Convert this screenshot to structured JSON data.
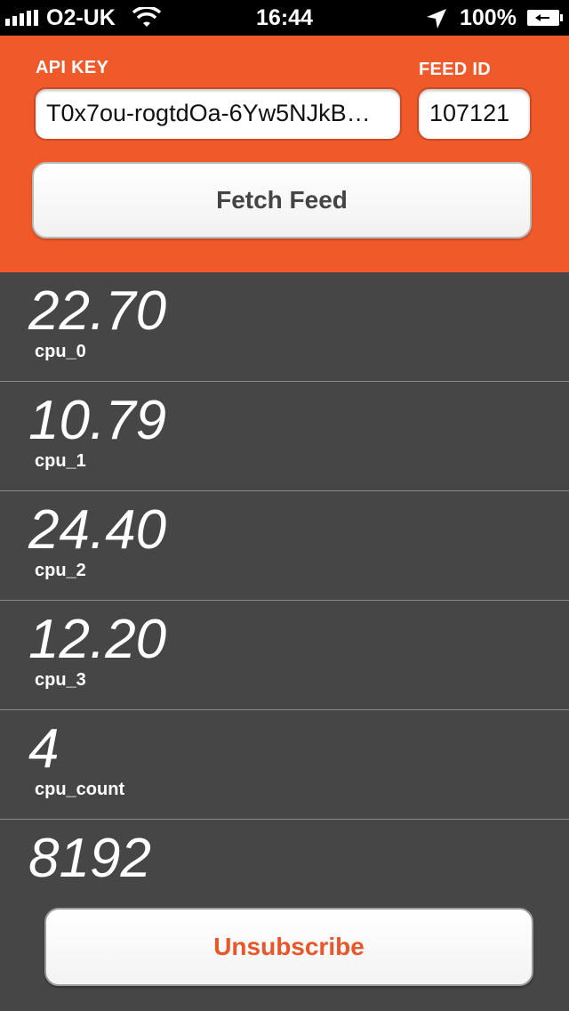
{
  "status_bar": {
    "carrier": "O2-UK",
    "time": "16:44",
    "battery_percent": "100%"
  },
  "header": {
    "api_key_label": "API KEY",
    "feed_id_label": "FEED ID",
    "api_key_value": "T0x7ou-rogtdOa-6Yw5NJkB…",
    "feed_id_value": "107121",
    "fetch_button_label": "Fetch Feed",
    "accent_color": "#f05a2a"
  },
  "datastreams": [
    {
      "value": "22.70",
      "name": "cpu_0"
    },
    {
      "value": "10.79",
      "name": "cpu_1"
    },
    {
      "value": "24.40",
      "name": "cpu_2"
    },
    {
      "value": "12.20",
      "name": "cpu_3"
    },
    {
      "value": "4",
      "name": "cpu_count"
    },
    {
      "value": "8192",
      "name": ""
    }
  ],
  "unsubscribe_label": "Unsubscribe",
  "icons": {
    "signal": "signal-bars-icon",
    "wifi": "wifi-icon",
    "location": "location-arrow-icon",
    "battery": "battery-charging-icon"
  }
}
